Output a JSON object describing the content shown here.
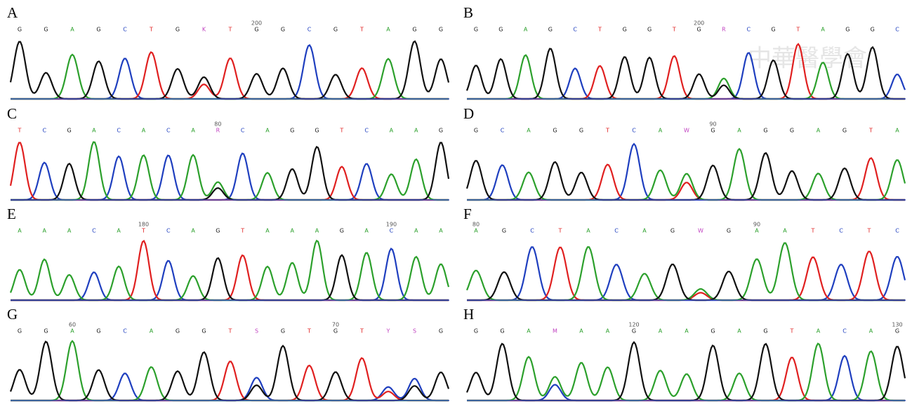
{
  "panels": [
    {
      "label": "A",
      "bases": [
        "G",
        "G",
        "A",
        "G",
        "C",
        "T",
        "G",
        "K",
        "T",
        "G",
        "G",
        "C",
        "G",
        "T",
        "A",
        "G",
        "G"
      ],
      "numbers": [
        "200"
      ]
    },
    {
      "label": "B",
      "bases": [
        "G",
        "G",
        "A",
        "G",
        "C",
        "T",
        "G",
        "G",
        "T",
        "G",
        "R",
        "C",
        "G",
        "T",
        "A",
        "G",
        "G",
        "C"
      ],
      "numbers": [
        "200"
      ]
    },
    {
      "label": "C",
      "bases": [
        "T",
        "C",
        "G",
        "A",
        "C",
        "A",
        "C",
        "A",
        "R",
        "C",
        "A",
        "G",
        "G",
        "T",
        "C",
        "A",
        "A",
        "G"
      ],
      "numbers": [
        "80"
      ]
    },
    {
      "label": "D",
      "bases": [
        "G",
        "C",
        "A",
        "G",
        "G",
        "T",
        "C",
        "A",
        "W",
        "G",
        "A",
        "G",
        "G",
        "A",
        "G",
        "T",
        "A"
      ],
      "numbers": [
        "90"
      ]
    },
    {
      "label": "E",
      "bases": [
        "A",
        "A",
        "A",
        "C",
        "A",
        "T",
        "C",
        "A",
        "G",
        "T",
        "A",
        "A",
        "A",
        "G",
        "A",
        "C",
        "A",
        "A"
      ],
      "numbers": [
        "180",
        "190"
      ]
    },
    {
      "label": "F",
      "bases": [
        "A",
        "G",
        "C",
        "T",
        "A",
        "C",
        "A",
        "G",
        "W",
        "G",
        "A",
        "A",
        "T",
        "C",
        "T",
        "C"
      ],
      "numbers": [
        "80",
        "90"
      ]
    },
    {
      "label": "G",
      "bases": [
        "G",
        "G",
        "A",
        "G",
        "C",
        "A",
        "G",
        "G",
        "T",
        "S",
        "G",
        "T",
        "G",
        "T",
        "Y",
        "S",
        "G"
      ],
      "numbers": [
        "60",
        "70"
      ]
    },
    {
      "label": "H",
      "bases": [
        "G",
        "G",
        "A",
        "M",
        "A",
        "A",
        "G",
        "A",
        "A",
        "G",
        "A",
        "G",
        "T",
        "A",
        "C",
        "A",
        "G"
      ],
      "numbers": [
        "120",
        "130"
      ]
    }
  ],
  "watermark": "中華醫學會"
}
